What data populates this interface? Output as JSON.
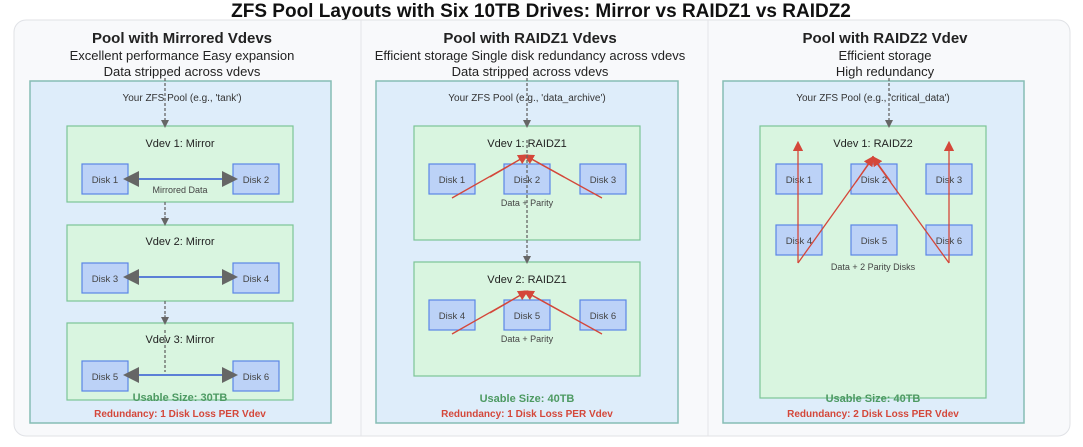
{
  "title": "ZFS Pool Layouts with Six 10TB Drives: Mirror vs RAIDZ1 vs RAIDZ2",
  "colors": {
    "pool_bg": "#deedfa",
    "vdev_bg": "#d9f5e0",
    "disk_bg": "#bcd2f7",
    "usable": "#4d9a62",
    "redundancy": "#d4473a"
  },
  "columns": [
    {
      "heading": "Pool with Mirrored Vdevs",
      "sub1": "Excellent performance Easy expansion",
      "sub2": "Data stripped across vdevs",
      "pool_label": "Your ZFS Pool (e.g., 'tank')",
      "vdevs": [
        "Vdev 1: Mirror",
        "Vdev 2: Mirror",
        "Vdev 3: Mirror"
      ],
      "note": "Mirrored Data",
      "disks": [
        "Disk 1",
        "Disk 2",
        "Disk 3",
        "Disk 4",
        "Disk 5",
        "Disk 6"
      ],
      "usable": "Usable Size: 30TB",
      "redundancy": "Redundancy: 1 Disk Loss PER Vdev"
    },
    {
      "heading": "Pool with RAIDZ1 Vdevs",
      "sub1": "Efficient storage  Single disk redundancy across vdevs",
      "sub2": "Data stripped across vdevs",
      "pool_label": "Your ZFS Pool (e.g., 'data_archive')",
      "vdevs": [
        "Vdev 1: RAIDZ1",
        "Vdev 2: RAIDZ1"
      ],
      "note": "Data + Parity",
      "disks": [
        "Disk 1",
        "Disk 2",
        "Disk 3",
        "Disk 4",
        "Disk 5",
        "Disk 6"
      ],
      "usable": "Usable Size: 40TB",
      "redundancy": "Redundancy: 1 Disk Loss PER Vdev"
    },
    {
      "heading": "Pool with RAIDZ2 Vdev",
      "sub1": "Efficient storage",
      "sub2": "High redundancy",
      "pool_label": "Your ZFS Pool (e.g., 'critical_data')",
      "vdevs": [
        "Vdev 1: RAIDZ2"
      ],
      "note": "Data + 2 Parity Disks",
      "disks": [
        "Disk 1",
        "Disk 2",
        "Disk 3",
        "Disk 4",
        "Disk 5",
        "Disk 6"
      ],
      "usable": "Usable Size: 40TB",
      "redundancy": "Redundancy: 2 Disk Loss PER Vdev"
    }
  ]
}
